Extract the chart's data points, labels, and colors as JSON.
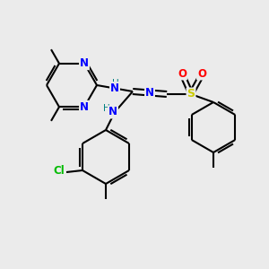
{
  "bg_color": "#ebebeb",
  "atom_colors": {
    "N": "#0000ff",
    "O": "#ff0000",
    "S": "#cccc00",
    "Cl": "#00bb00",
    "H": "#008080"
  },
  "bond_color": "#000000",
  "bond_width": 1.5
}
